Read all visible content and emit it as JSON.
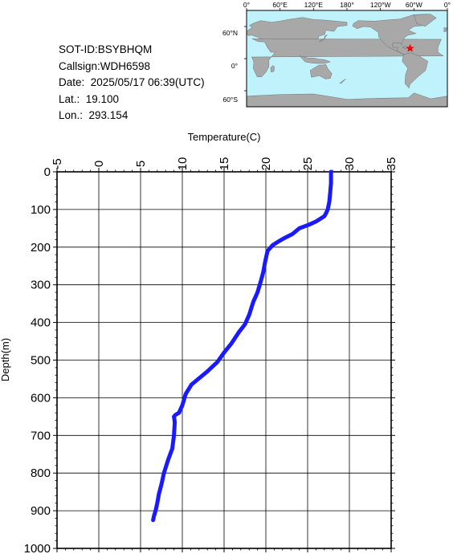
{
  "info": {
    "sot_id": "SOT-ID:BSYBHQM",
    "callsign": "Callsign:WDH6598",
    "date": "Date:  2025/05/17 06:39(UTC)",
    "lat": "Lat.:  19.100",
    "lon": "Lon.:  293.154"
  },
  "map": {
    "lon_labels": [
      "0°",
      "60°E",
      "120°E",
      "180°",
      "120°W",
      "60°W",
      "0°"
    ],
    "lat_labels": [
      "60°N",
      "0°",
      "60°S"
    ],
    "ocean_color": "#bff2fa",
    "land_color": "#a8a8a8",
    "marker_color": "#ff0000",
    "marker_lat": 19.1,
    "marker_lon": 293.154
  },
  "chart_data": {
    "type": "line",
    "title": "",
    "xlabel": "Temperature(C)",
    "ylabel": "Depth(m)",
    "xlim": [
      -5,
      35
    ],
    "ylim": [
      1000,
      0
    ],
    "x_ticks": [
      "-5",
      "0",
      "5",
      "10",
      "15",
      "20",
      "25",
      "30",
      "35"
    ],
    "y_ticks": [
      "0",
      "100",
      "200",
      "300",
      "400",
      "500",
      "600",
      "700",
      "800",
      "900",
      "1000"
    ],
    "grid": true,
    "line_color": "#1a1aff",
    "series": [
      {
        "x": [
          27.8,
          27.8,
          27.7,
          27.6,
          27.4,
          27.2,
          27.0,
          26.5,
          26.0,
          25.2,
          24.0,
          23.2,
          22.3,
          21.5,
          20.8,
          20.2,
          19.9,
          19.7,
          19.4,
          19.0,
          18.5,
          18.0,
          17.5,
          16.8,
          15.9,
          15.0,
          14.2,
          13.0,
          11.9,
          11.1,
          10.4,
          10.0,
          9.8,
          9.6,
          9.2,
          9.0,
          9.1,
          9.0,
          8.8,
          8.3,
          7.8,
          7.5,
          7.2,
          7.0,
          6.8,
          6.6,
          6.5
        ],
        "y": [
          0,
          30,
          55,
          80,
          100,
          110,
          118,
          125,
          132,
          140,
          150,
          165,
          175,
          185,
          195,
          210,
          240,
          265,
          290,
          320,
          345,
          380,
          405,
          425,
          455,
          480,
          505,
          530,
          550,
          565,
          590,
          620,
          630,
          640,
          645,
          650,
          665,
          700,
          735,
          765,
          800,
          830,
          855,
          880,
          900,
          915,
          925
        ]
      }
    ]
  }
}
